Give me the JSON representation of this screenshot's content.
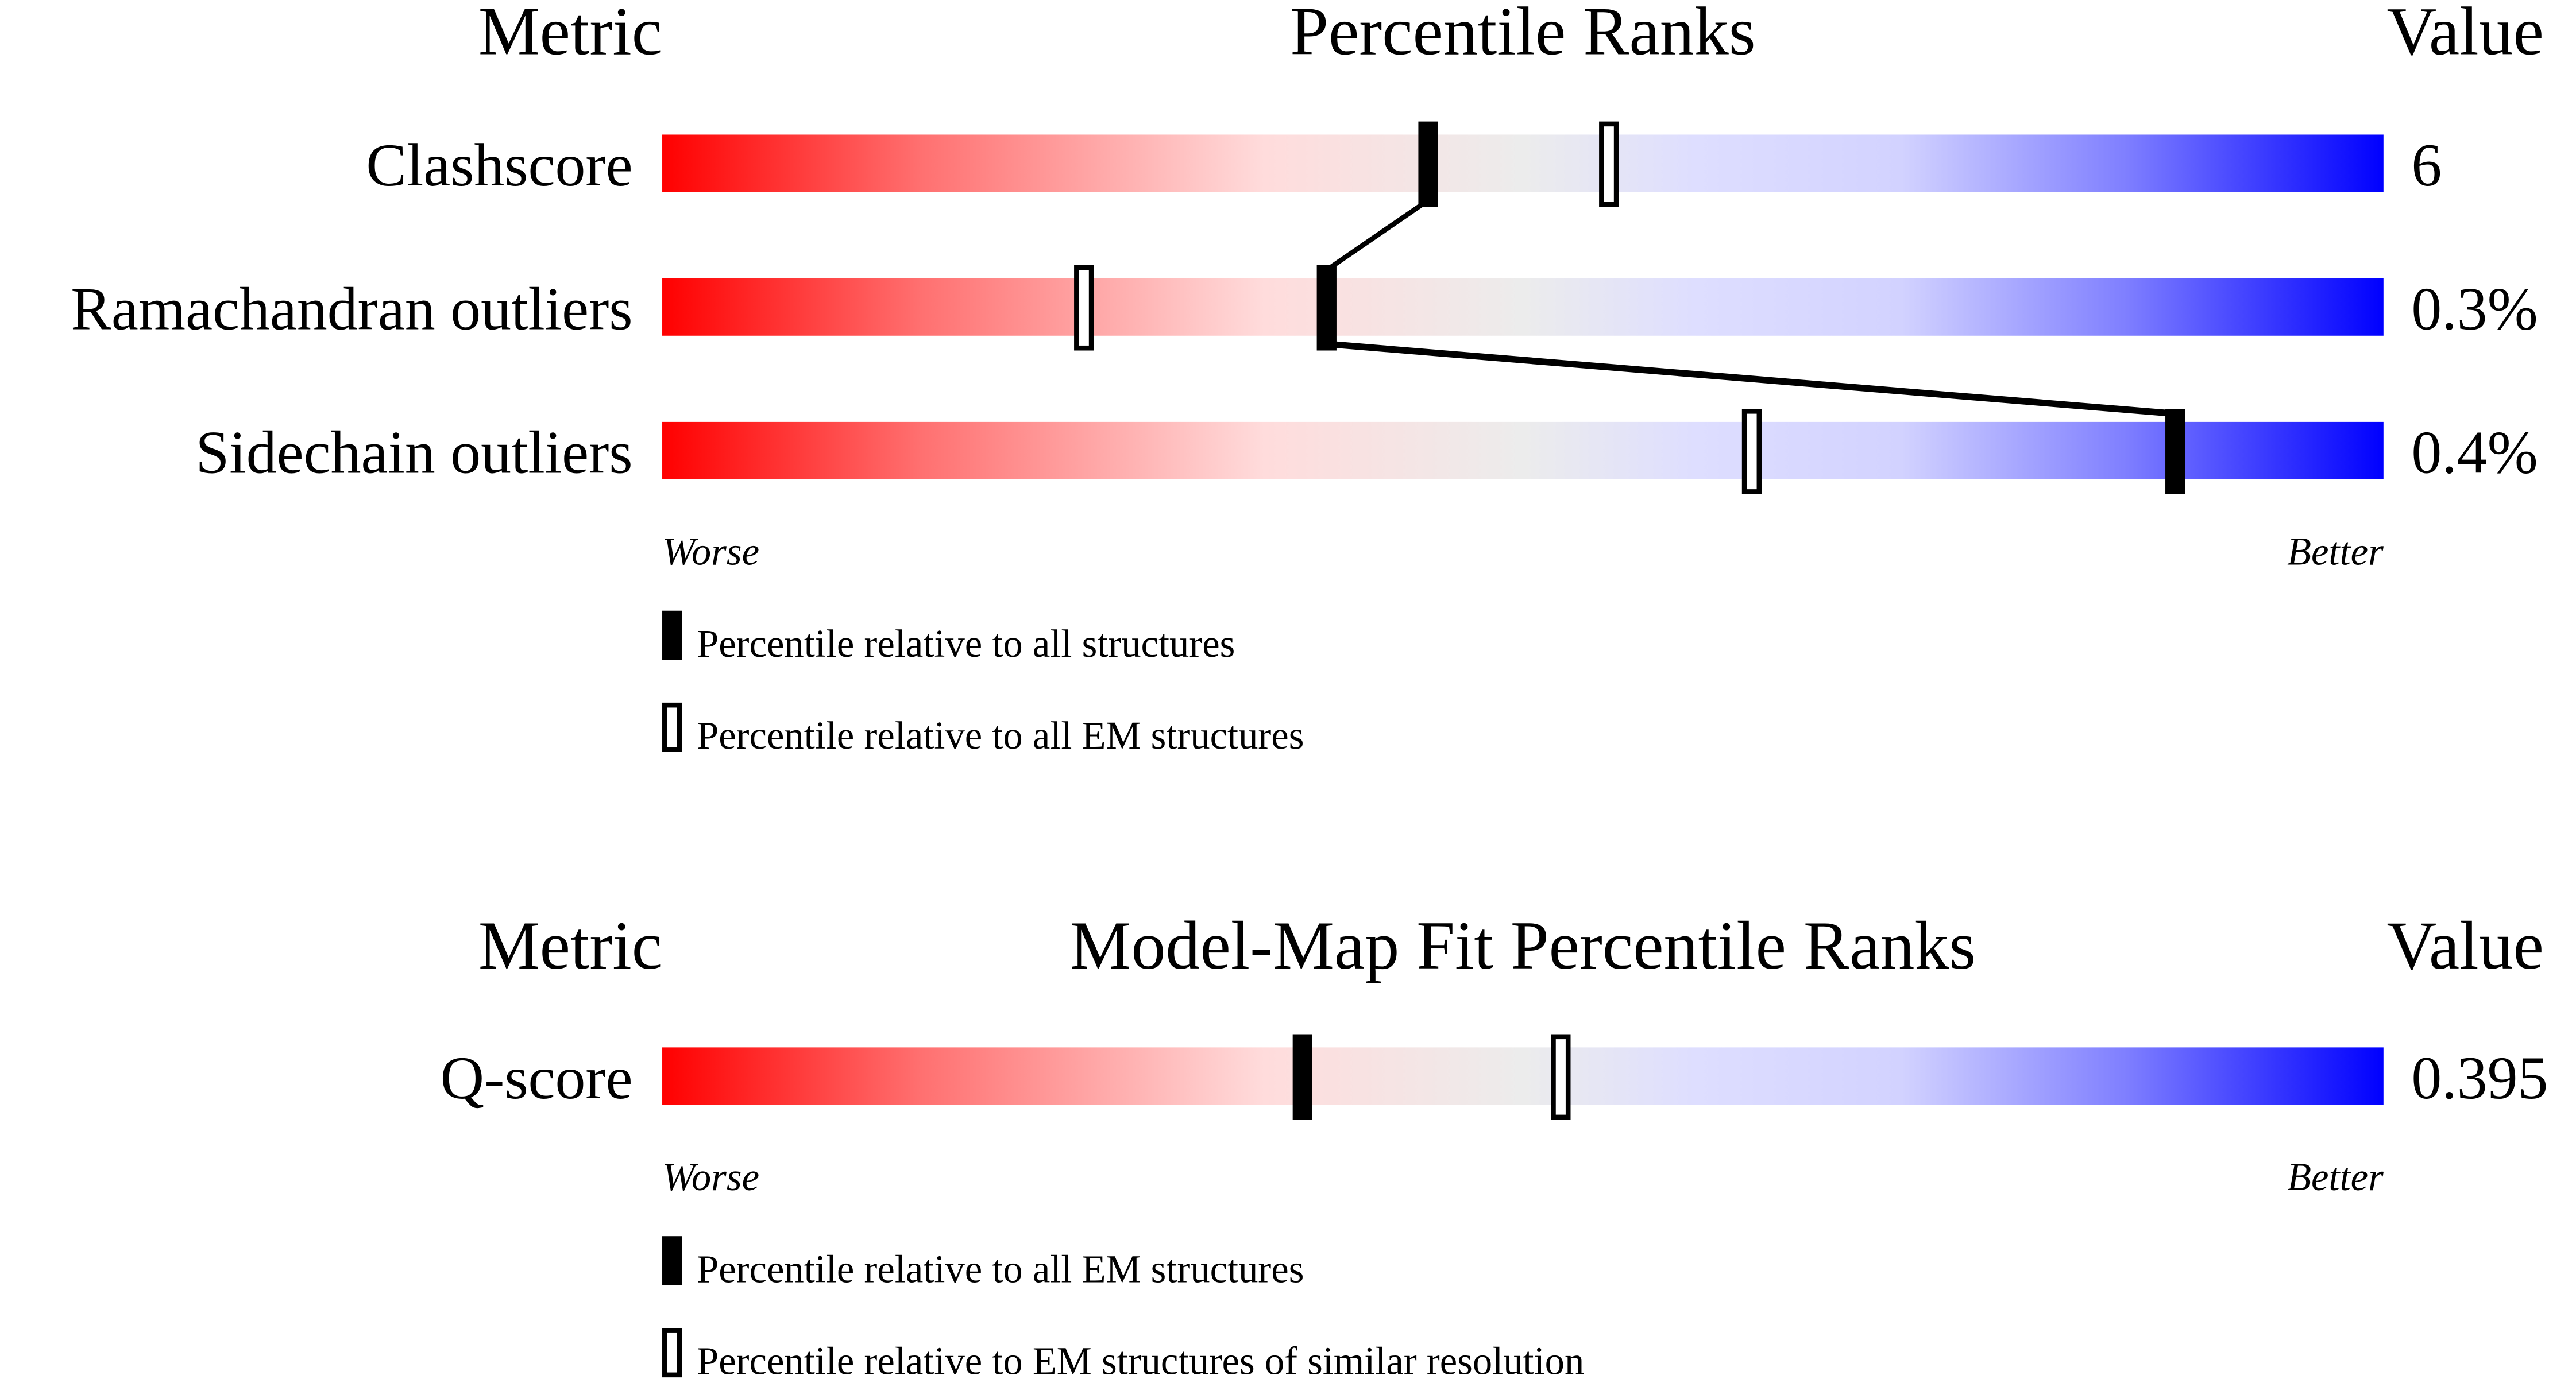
{
  "chart_data": [
    {
      "type": "percentile-bar",
      "header": {
        "metric": "Metric",
        "title": "Percentile Ranks",
        "value": "Value"
      },
      "axis": {
        "worse": "Worse",
        "better": "Better"
      },
      "xlim": [
        0,
        100
      ],
      "rows": [
        {
          "metric": "Clashscore",
          "value": "6",
          "percentile_all": 44.5,
          "percentile_em": 55
        },
        {
          "metric": "Ramachandran outliers",
          "value": "0.3%",
          "percentile_all": 38.6,
          "percentile_em": 24.5
        },
        {
          "metric": "Sidechain outliers",
          "value": "0.4%",
          "percentile_all": 87.9,
          "percentile_em": 63.3
        }
      ],
      "connect_filled_markers": true,
      "legend": {
        "filled": "Percentile relative to all structures",
        "open": "Percentile relative to all EM structures"
      }
    },
    {
      "type": "percentile-bar",
      "header": {
        "metric": "Metric",
        "title": "Model-Map Fit Percentile Ranks",
        "value": "Value"
      },
      "axis": {
        "worse": "Worse",
        "better": "Better"
      },
      "xlim": [
        0,
        100
      ],
      "rows": [
        {
          "metric": "Q-score",
          "value": "0.395",
          "percentile_all": 37.2,
          "percentile_em": 52.2
        }
      ],
      "connect_filled_markers": false,
      "legend": {
        "filled": "Percentile relative to all EM structures",
        "open": "Percentile relative to EM structures of similar resolution"
      }
    }
  ],
  "colors": {
    "worse": "#ff0000",
    "middle": "#eeeeee",
    "better": "#0000ff",
    "marker": "#000000"
  }
}
